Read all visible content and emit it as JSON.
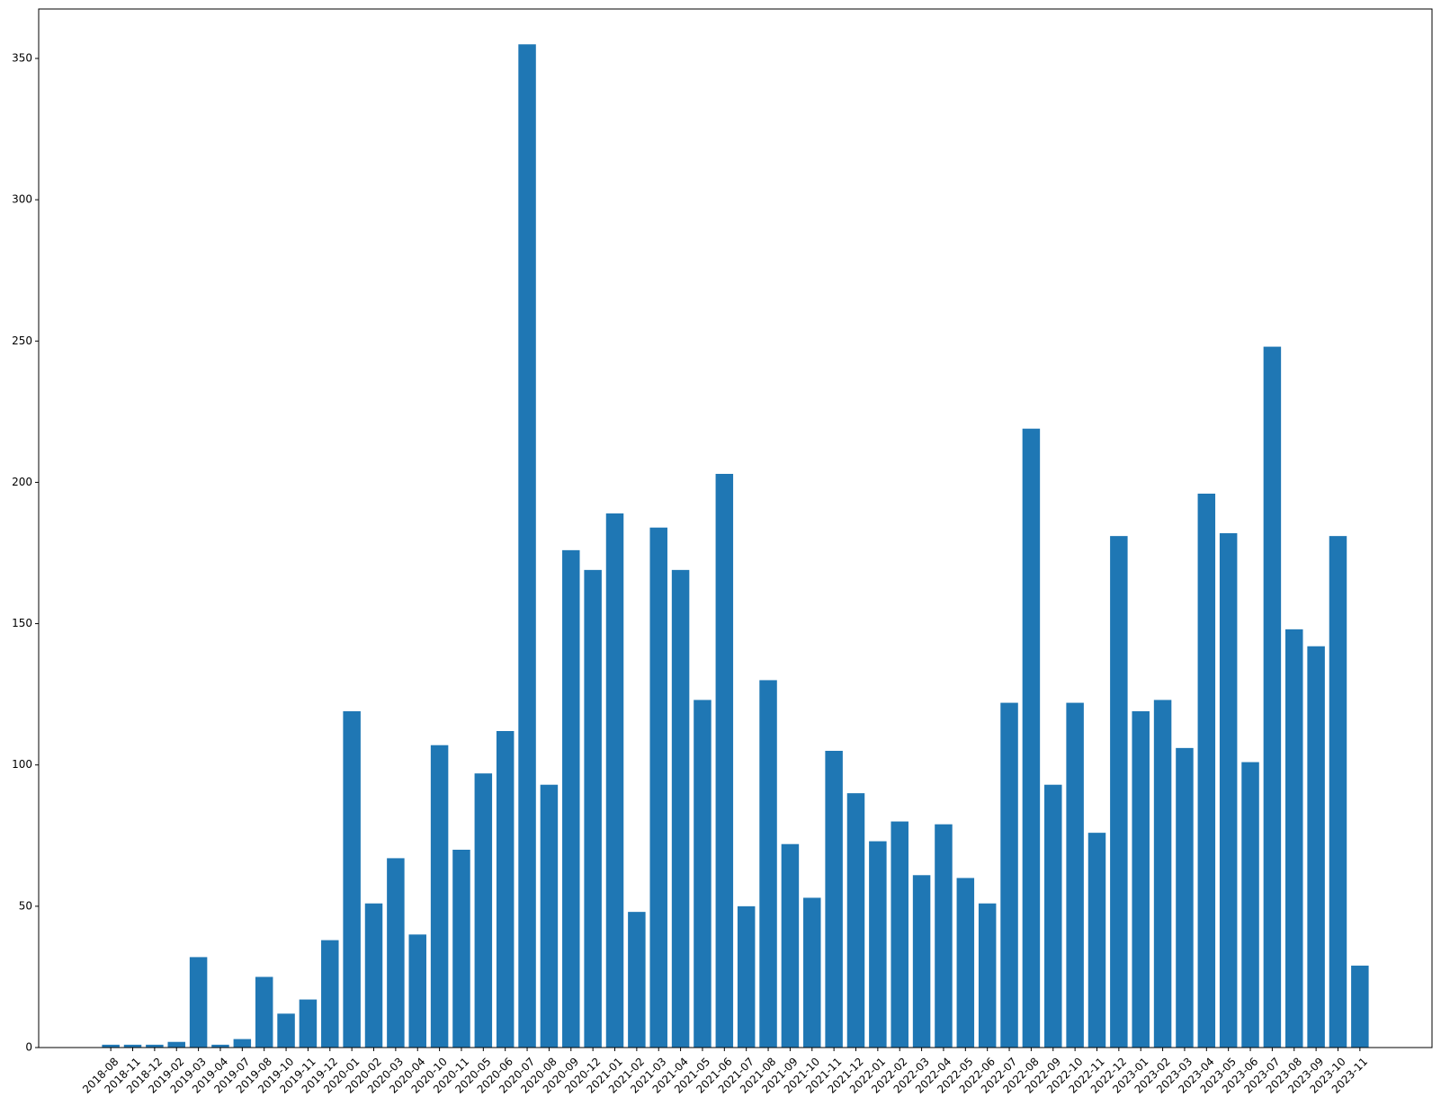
{
  "chart_data": {
    "type": "bar",
    "color": "#1f77b4",
    "categories": [
      "2018-08",
      "2018-11",
      "2018-12",
      "2019-02",
      "2019-03",
      "2019-04",
      "2019-07",
      "2019-08",
      "2019-10",
      "2019-11",
      "2019-12",
      "2020-01",
      "2020-02",
      "2020-03",
      "2020-04",
      "2020-10",
      "2020-11",
      "2020-05",
      "2020-06",
      "2020-07",
      "2020-08",
      "2020-09",
      "2020-12",
      "2021-01",
      "2021-02",
      "2021-03",
      "2021-04",
      "2021-05",
      "2021-06",
      "2021-07",
      "2021-08",
      "2021-09",
      "2021-10",
      "2021-11",
      "2021-12",
      "2022-01",
      "2022-02",
      "2022-03",
      "2022-04",
      "2022-05",
      "2022-06",
      "2022-07",
      "2022-08",
      "2022-09",
      "2022-10",
      "2022-11",
      "2022-12",
      "2023-01",
      "2023-02",
      "2023-03",
      "2023-04",
      "2023-05",
      "2023-06",
      "2023-07",
      "2023-08",
      "2023-09",
      "2023-10",
      "2023-11"
    ],
    "values": [
      1,
      1,
      1,
      2,
      32,
      1,
      3,
      25,
      12,
      17,
      38,
      119,
      51,
      67,
      40,
      107,
      70,
      97,
      112,
      355,
      93,
      176,
      169,
      189,
      48,
      184,
      169,
      123,
      203,
      50,
      130,
      72,
      53,
      105,
      90,
      73,
      80,
      61,
      79,
      60,
      51,
      122,
      219,
      93,
      122,
      76,
      181,
      119,
      123,
      106,
      196,
      182,
      101,
      248,
      148,
      142,
      181,
      29
    ],
    "ylim": [
      0,
      367.5
    ],
    "yticks": [
      0,
      50,
      100,
      150,
      200,
      250,
      300,
      350
    ],
    "grid": false
  }
}
